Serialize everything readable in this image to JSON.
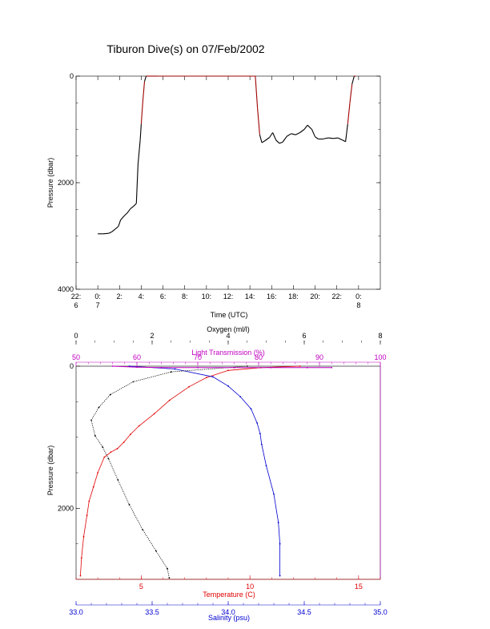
{
  "title": "Tiburon Dive(s) on 07/Feb/2002",
  "colors": {
    "axis": "#000000",
    "temperature": "#e00000",
    "salinity": "#0000d0",
    "light": "#c000c0",
    "oxygen": "#000000",
    "trace_surface": "#a00000"
  },
  "chart_data": [
    {
      "type": "line",
      "xlabel": "Time (UTC)",
      "ylabel": "Pressure (dbar)",
      "ylim": [
        4000,
        0
      ],
      "yticks": [
        "0",
        "2000",
        "4000"
      ],
      "xticks": [
        {
          "top": "22:",
          "bottom": "6"
        },
        {
          "top": "0:",
          "bottom": "7"
        },
        {
          "top": "2:",
          "bottom": ""
        },
        {
          "top": "4:",
          "bottom": ""
        },
        {
          "top": "6:",
          "bottom": ""
        },
        {
          "top": "8:",
          "bottom": ""
        },
        {
          "top": "10:",
          "bottom": ""
        },
        {
          "top": "12:",
          "bottom": ""
        },
        {
          "top": "14:",
          "bottom": ""
        },
        {
          "top": "16:",
          "bottom": ""
        },
        {
          "top": "18:",
          "bottom": ""
        },
        {
          "top": "20:",
          "bottom": ""
        },
        {
          "top": "22:",
          "bottom": ""
        },
        {
          "top": "0:",
          "bottom": "8"
        }
      ],
      "xlim_hours": [
        -2,
        26
      ],
      "series": [
        {
          "role": "dive-trace",
          "points": [
            [
              0,
              2960
            ],
            [
              0.5,
              2960
            ],
            [
              1,
              2950
            ],
            [
              1.3,
              2920
            ],
            [
              1.6,
              2870
            ],
            [
              1.9,
              2820
            ],
            [
              2.1,
              2700
            ],
            [
              2.4,
              2630
            ],
            [
              2.7,
              2570
            ],
            [
              3.0,
              2490
            ],
            [
              3.3,
              2440
            ],
            [
              3.55,
              2390
            ],
            [
              3.7,
              1650
            ],
            [
              3.9,
              1200
            ],
            [
              4.0,
              900
            ],
            [
              4.15,
              450
            ],
            [
              4.3,
              100
            ],
            [
              4.45,
              0
            ],
            [
              5.5,
              0
            ],
            [
              8,
              0
            ],
            [
              12,
              0
            ],
            [
              14.5,
              0
            ],
            [
              14.7,
              600
            ],
            [
              14.9,
              1100
            ],
            [
              15.1,
              1250
            ],
            [
              15.4,
              1210
            ],
            [
              15.8,
              1150
            ],
            [
              16.1,
              1060
            ],
            [
              16.4,
              1200
            ],
            [
              16.7,
              1260
            ],
            [
              17.0,
              1240
            ],
            [
              17.4,
              1130
            ],
            [
              17.8,
              1080
            ],
            [
              18.2,
              1100
            ],
            [
              18.6,
              1060
            ],
            [
              19.0,
              1000
            ],
            [
              19.3,
              920
            ],
            [
              19.7,
              1000
            ],
            [
              20.0,
              1140
            ],
            [
              20.3,
              1180
            ],
            [
              20.7,
              1180
            ],
            [
              21.2,
              1160
            ],
            [
              21.7,
              1170
            ],
            [
              22.1,
              1160
            ],
            [
              22.5,
              1200
            ],
            [
              22.8,
              1230
            ],
            [
              23.0,
              900
            ],
            [
              23.2,
              500
            ],
            [
              23.4,
              150
            ],
            [
              23.6,
              0
            ],
            [
              23.75,
              0
            ]
          ]
        }
      ]
    },
    {
      "type": "scatter",
      "ylabel": "Pressure (dbar)",
      "ylim": [
        3000,
        0
      ],
      "yticks": [
        "0",
        "2000"
      ],
      "axes": {
        "oxygen": {
          "label": "Oxygen (ml/l)",
          "range": [
            0,
            8
          ],
          "ticks": [
            "0",
            "2",
            "4",
            "6",
            "8"
          ]
        },
        "light": {
          "label": "Light Transmission (%)",
          "range": [
            50,
            100
          ],
          "ticks": [
            "50",
            "60",
            "70",
            "80",
            "90",
            "100"
          ]
        },
        "temperature": {
          "label": "Temperature (C)",
          "range": [
            2,
            16
          ],
          "ticks": [
            "5",
            "10",
            "15"
          ]
        },
        "salinity": {
          "label": "Salinity (psu)",
          "range": [
            33.0,
            35.0
          ],
          "ticks": [
            "33.0",
            "33.5",
            "34.0",
            "34.5",
            "35.0"
          ]
        }
      },
      "series": [
        {
          "name": "Temperature (C)",
          "axis": "temperature",
          "points": [
            [
              12.3,
              0
            ],
            [
              10.5,
              20
            ],
            [
              9.0,
              60
            ],
            [
              8.0,
              160
            ],
            [
              7.2,
              290
            ],
            [
              6.3,
              480
            ],
            [
              5.6,
              670
            ],
            [
              4.9,
              840
            ],
            [
              4.5,
              960
            ],
            [
              4.2,
              1070
            ],
            [
              3.9,
              1160
            ],
            [
              3.6,
              1210
            ],
            [
              3.3,
              1280
            ],
            [
              3.0,
              1500
            ],
            [
              2.8,
              1700
            ],
            [
              2.6,
              1900
            ],
            [
              2.5,
              2100
            ],
            [
              2.35,
              2400
            ],
            [
              2.25,
              2700
            ],
            [
              2.2,
              2950
            ]
          ]
        },
        {
          "name": "Salinity (psu)",
          "axis": "salinity",
          "points": [
            [
              33.35,
              0
            ],
            [
              33.65,
              40
            ],
            [
              33.9,
              150
            ],
            [
              34.0,
              280
            ],
            [
              34.08,
              430
            ],
            [
              34.15,
              600
            ],
            [
              34.19,
              800
            ],
            [
              34.21,
              950
            ],
            [
              34.22,
              1100
            ],
            [
              34.25,
              1400
            ],
            [
              34.3,
              1800
            ],
            [
              34.33,
              2200
            ],
            [
              34.34,
              2500
            ],
            [
              34.34,
              2950
            ]
          ]
        },
        {
          "name": "Oxygen (ml/l)",
          "axis": "oxygen",
          "points": [
            [
              4.5,
              0
            ],
            [
              2.5,
              80
            ],
            [
              1.5,
              220
            ],
            [
              0.9,
              400
            ],
            [
              0.6,
              580
            ],
            [
              0.4,
              760
            ],
            [
              0.5,
              980
            ],
            [
              0.7,
              1140
            ],
            [
              0.85,
              1300
            ],
            [
              1.1,
              1600
            ],
            [
              1.4,
              1950
            ],
            [
              1.75,
              2300
            ],
            [
              2.1,
              2600
            ],
            [
              2.4,
              2850
            ],
            [
              2.45,
              2980
            ]
          ]
        },
        {
          "name": "Light Transmission (%)",
          "axis": "light",
          "points": [
            [
              56,
              0
            ],
            [
              60,
              15
            ],
            [
              64,
              20
            ],
            [
              70,
              20
            ],
            [
              76,
              20
            ],
            [
              82,
              20
            ],
            [
              88,
              20
            ],
            [
              92,
              20
            ]
          ]
        }
      ]
    }
  ]
}
